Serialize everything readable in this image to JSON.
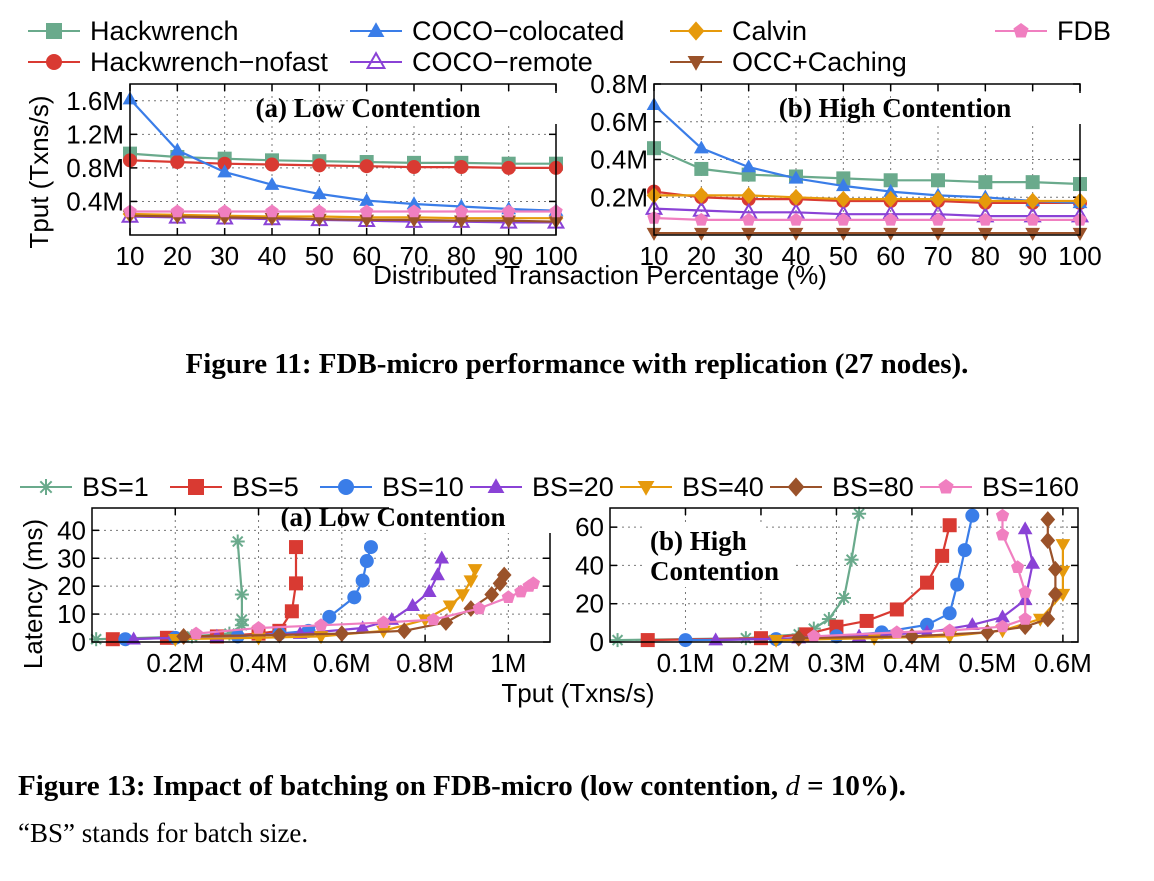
{
  "figure11": {
    "caption": "Figure 11: FDB-micro performance with replication (27 nodes).",
    "legend": [
      "Hackwrench",
      "Hackwrench−nofast",
      "COCO−colocated",
      "COCO−remote",
      "Calvin",
      "OCC+Caching",
      "FDB"
    ],
    "series_styles": {
      "Hackwrench": {
        "color": "#6aaa8c",
        "marker": "square"
      },
      "Hackwrench−nofast": {
        "color": "#d93a32",
        "marker": "circle"
      },
      "COCO−colocated": {
        "color": "#3a7de8",
        "marker": "triangle"
      },
      "COCO−remote": {
        "color": "#8a42d6",
        "marker": "triangle-open"
      },
      "Calvin": {
        "color": "#e69a0c",
        "marker": "diamond"
      },
      "OCC+Caching": {
        "color": "#9a522a",
        "marker": "triangle-down"
      },
      "FDB": {
        "color": "#f07fc0",
        "marker": "pentagon"
      }
    },
    "ylabel": "Tput (Txns/s)",
    "xlabel": "Distributed Transaction Percentage (%)"
  },
  "figure13": {
    "caption_main": "Figure 13: Impact of batching on FDB-micro (low contention, ",
    "caption_math": "d",
    "caption_eq": " = 10%).",
    "caption_note": "“BS” stands for batch size.",
    "legend": [
      "BS=1",
      "BS=5",
      "BS=10",
      "BS=20",
      "BS=40",
      "BS=80",
      "BS=160"
    ],
    "series_styles": {
      "BS=1": {
        "color": "#6aaa8c",
        "marker": "asterisk"
      },
      "BS=5": {
        "color": "#d93a32",
        "marker": "square"
      },
      "BS=10": {
        "color": "#3a7de8",
        "marker": "circle"
      },
      "BS=20": {
        "color": "#8a42d6",
        "marker": "triangle"
      },
      "BS=40": {
        "color": "#e69a0c",
        "marker": "triangle-down"
      },
      "BS=80": {
        "color": "#9a522a",
        "marker": "diamond"
      },
      "BS=160": {
        "color": "#f07fc0",
        "marker": "pentagon"
      }
    },
    "ylabel": "Latency (ms)",
    "xlabel": "Tput (Txns/s)"
  },
  "chart_data": [
    {
      "id": "fig11a",
      "type": "line",
      "title": "(a) Low Contention",
      "x": [
        10,
        20,
        30,
        40,
        50,
        60,
        70,
        80,
        90,
        100
      ],
      "xlim": [
        10,
        100
      ],
      "ylim": [
        0,
        1.8
      ],
      "yticks": [
        0.4,
        0.8,
        1.2,
        1.6
      ],
      "ytick_labels": [
        "0.4M",
        "0.8M",
        "1.2M",
        "1.6M"
      ],
      "xtick_labels": [
        "10",
        "20",
        "30",
        "40",
        "50",
        "60",
        "70",
        "80",
        "90",
        "100"
      ],
      "grid": true,
      "series": [
        {
          "name": "Hackwrench",
          "values": [
            0.97,
            0.93,
            0.91,
            0.89,
            0.88,
            0.87,
            0.86,
            0.86,
            0.85,
            0.85
          ]
        },
        {
          "name": "Hackwrench−nofast",
          "values": [
            0.89,
            0.87,
            0.85,
            0.84,
            0.83,
            0.82,
            0.81,
            0.81,
            0.8,
            0.8
          ]
        },
        {
          "name": "COCO−colocated",
          "values": [
            1.62,
            1.01,
            0.75,
            0.6,
            0.49,
            0.41,
            0.37,
            0.34,
            0.31,
            0.29
          ]
        },
        {
          "name": "COCO−remote",
          "values": [
            0.22,
            0.21,
            0.2,
            0.19,
            0.18,
            0.17,
            0.16,
            0.16,
            0.15,
            0.15
          ]
        },
        {
          "name": "Calvin",
          "values": [
            0.25,
            0.24,
            0.23,
            0.22,
            0.22,
            0.21,
            0.21,
            0.2,
            0.2,
            0.2
          ]
        },
        {
          "name": "OCC+Caching",
          "values": [
            0.23,
            0.22,
            0.21,
            0.2,
            0.19,
            0.18,
            0.18,
            0.17,
            0.17,
            0.16
          ]
        },
        {
          "name": "FDB",
          "values": [
            0.28,
            0.28,
            0.28,
            0.28,
            0.28,
            0.28,
            0.28,
            0.28,
            0.28,
            0.28
          ]
        }
      ]
    },
    {
      "id": "fig11b",
      "type": "line",
      "title": "(b) High Contention",
      "x": [
        10,
        20,
        30,
        40,
        50,
        60,
        70,
        80,
        90,
        100
      ],
      "xlim": [
        10,
        100
      ],
      "ylim": [
        0,
        0.8
      ],
      "yticks": [
        0.2,
        0.4,
        0.6,
        0.8
      ],
      "ytick_labels": [
        "0.2M",
        "0.4M",
        "0.6M",
        "0.8M"
      ],
      "xtick_labels": [
        "10",
        "20",
        "30",
        "40",
        "50",
        "60",
        "70",
        "80",
        "90",
        "100"
      ],
      "grid": true,
      "series": [
        {
          "name": "Hackwrench",
          "values": [
            0.46,
            0.35,
            0.32,
            0.31,
            0.3,
            0.29,
            0.29,
            0.28,
            0.28,
            0.27
          ]
        },
        {
          "name": "Hackwrench−nofast",
          "values": [
            0.23,
            0.2,
            0.19,
            0.19,
            0.18,
            0.18,
            0.18,
            0.17,
            0.17,
            0.17
          ]
        },
        {
          "name": "COCO−colocated",
          "values": [
            0.69,
            0.46,
            0.36,
            0.3,
            0.26,
            0.23,
            0.21,
            0.2,
            0.18,
            0.17
          ]
        },
        {
          "name": "COCO−remote",
          "values": [
            0.14,
            0.13,
            0.12,
            0.12,
            0.11,
            0.11,
            0.11,
            0.1,
            0.1,
            0.1
          ]
        },
        {
          "name": "Calvin",
          "values": [
            0.21,
            0.21,
            0.21,
            0.2,
            0.19,
            0.19,
            0.19,
            0.18,
            0.18,
            0.18
          ]
        },
        {
          "name": "OCC+Caching",
          "values": [
            0.01,
            0.01,
            0.01,
            0.01,
            0.01,
            0.01,
            0.01,
            0.01,
            0.01,
            0.01
          ]
        },
        {
          "name": "FDB",
          "values": [
            0.09,
            0.08,
            0.08,
            0.08,
            0.08,
            0.08,
            0.08,
            0.08,
            0.08,
            0.08
          ]
        }
      ]
    },
    {
      "id": "fig13a",
      "type": "line",
      "title": "(a) Low Contention",
      "xlim": [
        0,
        1.1
      ],
      "ylim": [
        0,
        48
      ],
      "xticks": [
        0.2,
        0.4,
        0.6,
        0.8,
        1.0
      ],
      "xtick_labels": [
        "0.2M",
        "0.4M",
        "0.6M",
        "0.8M",
        "1M"
      ],
      "yticks": [
        0,
        10,
        20,
        30,
        40
      ],
      "ytick_labels": [
        "0",
        "10",
        "20",
        "30",
        "40"
      ],
      "grid": true,
      "series": [
        {
          "name": "BS=1",
          "points": [
            [
              0.01,
              1
            ],
            [
              0.24,
              2
            ],
            [
              0.33,
              3
            ],
            [
              0.36,
              6
            ],
            [
              0.36,
              8
            ],
            [
              0.36,
              17
            ],
            [
              0.35,
              36
            ]
          ]
        },
        {
          "name": "BS=5",
          "points": [
            [
              0.05,
              1
            ],
            [
              0.18,
              1.5
            ],
            [
              0.3,
              2
            ],
            [
              0.4,
              3
            ],
            [
              0.45,
              4
            ],
            [
              0.48,
              11
            ],
            [
              0.49,
              21
            ],
            [
              0.49,
              34
            ]
          ]
        },
        {
          "name": "BS=10",
          "points": [
            [
              0.08,
              1
            ],
            [
              0.2,
              1.5
            ],
            [
              0.35,
              2
            ],
            [
              0.45,
              3
            ],
            [
              0.52,
              4
            ],
            [
              0.57,
              9
            ],
            [
              0.63,
              16
            ],
            [
              0.65,
              22
            ],
            [
              0.66,
              29
            ],
            [
              0.67,
              34
            ]
          ]
        },
        {
          "name": "BS=20",
          "points": [
            [
              0.1,
              1
            ],
            [
              0.3,
              2
            ],
            [
              0.5,
              3
            ],
            [
              0.65,
              5
            ],
            [
              0.72,
              8
            ],
            [
              0.77,
              13
            ],
            [
              0.81,
              18
            ],
            [
              0.83,
              24
            ],
            [
              0.84,
              30
            ]
          ]
        },
        {
          "name": "BS=40",
          "points": [
            [
              0.2,
              1
            ],
            [
              0.4,
              1.5
            ],
            [
              0.55,
              2
            ],
            [
              0.7,
              4
            ],
            [
              0.8,
              8
            ],
            [
              0.86,
              13
            ],
            [
              0.89,
              17
            ],
            [
              0.91,
              22
            ],
            [
              0.92,
              26
            ]
          ]
        },
        {
          "name": "BS=80",
          "points": [
            [
              0.22,
              2
            ],
            [
              0.45,
              2.5
            ],
            [
              0.6,
              3
            ],
            [
              0.75,
              4
            ],
            [
              0.85,
              7
            ],
            [
              0.91,
              12
            ],
            [
              0.96,
              17
            ],
            [
              0.98,
              21
            ],
            [
              0.99,
              24
            ]
          ]
        },
        {
          "name": "BS=160",
          "points": [
            [
              0.25,
              3
            ],
            [
              0.4,
              5
            ],
            [
              0.55,
              6
            ],
            [
              0.7,
              7
            ],
            [
              0.82,
              8
            ],
            [
              0.93,
              12
            ],
            [
              1.0,
              16
            ],
            [
              1.03,
              18
            ],
            [
              1.05,
              20
            ],
            [
              1.06,
              21
            ]
          ]
        }
      ]
    },
    {
      "id": "fig13b",
      "type": "line",
      "title": "(b) High Contention",
      "title_lines": [
        "(b) High",
        "Contention"
      ],
      "xlim": [
        0,
        0.62
      ],
      "ylim": [
        0,
        70
      ],
      "xticks": [
        0.1,
        0.2,
        0.3,
        0.4,
        0.5,
        0.6
      ],
      "xtick_labels": [
        "0.1M",
        "0.2M",
        "0.3M",
        "0.4M",
        "0.5M",
        "0.6M"
      ],
      "yticks": [
        0,
        20,
        40,
        60
      ],
      "ytick_labels": [
        "0",
        "20",
        "40",
        "60"
      ],
      "grid": true,
      "series": [
        {
          "name": "BS=1",
          "points": [
            [
              0.01,
              1
            ],
            [
              0.18,
              2
            ],
            [
              0.25,
              4
            ],
            [
              0.27,
              7
            ],
            [
              0.29,
              12
            ],
            [
              0.31,
              23
            ],
            [
              0.32,
              43
            ],
            [
              0.33,
              67
            ]
          ]
        },
        {
          "name": "BS=5",
          "points": [
            [
              0.05,
              1
            ],
            [
              0.2,
              2
            ],
            [
              0.26,
              4
            ],
            [
              0.3,
              8
            ],
            [
              0.34,
              11
            ],
            [
              0.38,
              17
            ],
            [
              0.42,
              31
            ],
            [
              0.44,
              45
            ],
            [
              0.45,
              61
            ]
          ]
        },
        {
          "name": "BS=10",
          "points": [
            [
              0.1,
              1
            ],
            [
              0.22,
              1.5
            ],
            [
              0.3,
              3
            ],
            [
              0.36,
              5
            ],
            [
              0.42,
              9
            ],
            [
              0.45,
              15
            ],
            [
              0.46,
              30
            ],
            [
              0.47,
              48
            ],
            [
              0.48,
              66
            ]
          ]
        },
        {
          "name": "BS=20",
          "points": [
            [
              0.14,
              1
            ],
            [
              0.25,
              2
            ],
            [
              0.33,
              3
            ],
            [
              0.42,
              5
            ],
            [
              0.48,
              9
            ],
            [
              0.52,
              13
            ],
            [
              0.55,
              22
            ],
            [
              0.56,
              41
            ],
            [
              0.55,
              59
            ]
          ]
        },
        {
          "name": "BS=40",
          "points": [
            [
              0.22,
              1
            ],
            [
              0.35,
              2
            ],
            [
              0.45,
              3
            ],
            [
              0.52,
              6
            ],
            [
              0.57,
              12
            ],
            [
              0.6,
              25
            ],
            [
              0.6,
              37
            ],
            [
              0.6,
              51
            ]
          ]
        },
        {
          "name": "BS=80",
          "points": [
            [
              0.25,
              2
            ],
            [
              0.4,
              3
            ],
            [
              0.5,
              5
            ],
            [
              0.55,
              8
            ],
            [
              0.58,
              12
            ],
            [
              0.59,
              25
            ],
            [
              0.59,
              38
            ],
            [
              0.58,
              53
            ],
            [
              0.58,
              64
            ]
          ]
        },
        {
          "name": "BS=160",
          "points": [
            [
              0.27,
              3
            ],
            [
              0.38,
              5
            ],
            [
              0.45,
              6
            ],
            [
              0.52,
              8
            ],
            [
              0.55,
              12
            ],
            [
              0.55,
              26
            ],
            [
              0.54,
              39
            ],
            [
              0.52,
              56
            ],
            [
              0.52,
              66
            ]
          ]
        }
      ]
    }
  ]
}
